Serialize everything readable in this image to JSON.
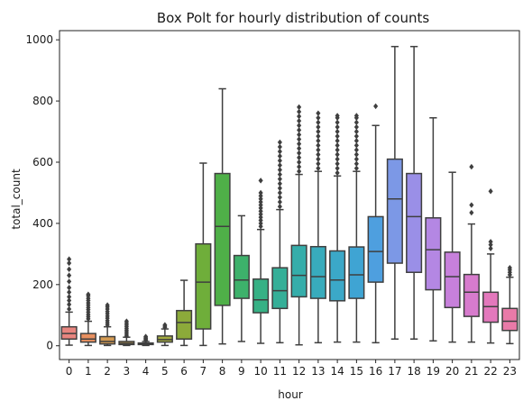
{
  "chart_data": {
    "type": "box",
    "title": "Box Polt for hourly distribution of counts",
    "xlabel": "hour",
    "ylabel": "total_count",
    "ylim": [
      -45,
      1030
    ],
    "yticks": [
      0,
      200,
      400,
      600,
      800,
      1000
    ],
    "grid": false,
    "legend": "none",
    "categories": [
      "0",
      "1",
      "2",
      "3",
      "4",
      "5",
      "6",
      "7",
      "8",
      "9",
      "10",
      "11",
      "12",
      "13",
      "14",
      "15",
      "16",
      "17",
      "18",
      "19",
      "20",
      "21",
      "22",
      "23"
    ],
    "boxes": [
      {
        "hour": "0",
        "color": "#e8857f",
        "whislo": 2,
        "q1": 22,
        "med": 40,
        "q3": 62,
        "whishi": 110,
        "fliers": [
          120,
          135,
          148,
          160,
          175,
          190,
          210,
          230,
          250,
          270,
          283
        ]
      },
      {
        "hour": "1",
        "color": "#e89060",
        "whislo": 1,
        "q1": 12,
        "med": 22,
        "q3": 40,
        "whishi": 80,
        "fliers": [
          88,
          95,
          102,
          110,
          118,
          125,
          133,
          140,
          148,
          155,
          163,
          168
        ]
      },
      {
        "hour": "2",
        "color": "#d49a52",
        "whislo": 1,
        "q1": 6,
        "med": 14,
        "q3": 30,
        "whishi": 62,
        "fliers": [
          68,
          75,
          82,
          90,
          97,
          105,
          112,
          120,
          127,
          133
        ]
      },
      {
        "hour": "3",
        "color": "#c9a24a",
        "whislo": 1,
        "q1": 4,
        "med": 8,
        "q3": 14,
        "whishi": 28,
        "fliers": [
          32,
          38,
          44,
          50,
          56,
          62,
          68,
          74,
          80
        ]
      },
      {
        "hour": "4",
        "color": "#b8a843",
        "whislo": 1,
        "q1": 4,
        "med": 6,
        "q3": 9,
        "whishi": 14,
        "fliers": [
          17,
          20,
          23,
          26,
          30
        ]
      },
      {
        "hour": "5",
        "color": "#a3ab3f",
        "whislo": 1,
        "q1": 12,
        "med": 20,
        "q3": 32,
        "whishi": 55,
        "fliers": [
          60,
          64,
          68
        ]
      },
      {
        "hour": "6",
        "color": "#8caa3a",
        "whislo": 1,
        "q1": 22,
        "med": 76,
        "q3": 115,
        "whishi": 214,
        "fliers": []
      },
      {
        "hour": "7",
        "color": "#6fae3a",
        "whislo": 1,
        "q1": 55,
        "med": 208,
        "q3": 333,
        "whishi": 597,
        "fliers": []
      },
      {
        "hour": "8",
        "color": "#4fb048",
        "whislo": 6,
        "q1": 132,
        "med": 390,
        "q3": 563,
        "whishi": 840,
        "fliers": []
      },
      {
        "hour": "9",
        "color": "#3db16b",
        "whislo": 14,
        "q1": 155,
        "med": 215,
        "q3": 295,
        "whishi": 425,
        "fliers": []
      },
      {
        "hour": "10",
        "color": "#36b185",
        "whislo": 8,
        "q1": 108,
        "med": 150,
        "q3": 218,
        "whishi": 380,
        "fliers": [
          390,
          400,
          410,
          420,
          430,
          440,
          450,
          460,
          470,
          480,
          490,
          500,
          540
        ]
      },
      {
        "hour": "11",
        "color": "#35af98",
        "whislo": 10,
        "q1": 122,
        "med": 180,
        "q3": 255,
        "whishi": 445,
        "fliers": [
          455,
          470,
          485,
          500,
          515,
          530,
          545,
          560,
          575,
          590,
          605,
          620,
          635,
          650,
          665
        ]
      },
      {
        "hour": "12",
        "color": "#35adaa",
        "whislo": 3,
        "q1": 160,
        "med": 230,
        "q3": 328,
        "whishi": 560,
        "fliers": [
          570,
          585,
          600,
          615,
          630,
          645,
          660,
          675,
          690,
          705,
          720,
          735,
          750,
          765,
          780
        ]
      },
      {
        "hour": "13",
        "color": "#38abbc",
        "whislo": 10,
        "q1": 155,
        "med": 226,
        "q3": 324,
        "whishi": 570,
        "fliers": [
          580,
          595,
          610,
          625,
          640,
          655,
          670,
          685,
          700,
          715,
          730,
          745,
          760
        ]
      },
      {
        "hour": "14",
        "color": "#3ba8c8",
        "whislo": 12,
        "q1": 147,
        "med": 215,
        "q3": 310,
        "whishi": 555,
        "fliers": [
          565,
          580,
          595,
          610,
          625,
          640,
          655,
          670,
          685,
          700,
          715,
          730,
          745,
          752
        ]
      },
      {
        "hour": "15",
        "color": "#3fa4d3",
        "whislo": 12,
        "q1": 155,
        "med": 232,
        "q3": 323,
        "whishi": 570,
        "fliers": [
          580,
          595,
          610,
          625,
          640,
          655,
          670,
          685,
          700,
          715,
          730,
          745,
          752
        ]
      },
      {
        "hour": "16",
        "color": "#4e9fdf",
        "whislo": 10,
        "q1": 208,
        "med": 308,
        "q3": 422,
        "whishi": 720,
        "fliers": [
          783
        ]
      },
      {
        "hour": "17",
        "color": "#7c98e6",
        "whislo": 22,
        "q1": 270,
        "med": 480,
        "q3": 610,
        "whishi": 978,
        "fliers": []
      },
      {
        "hour": "18",
        "color": "#9a8fe7",
        "whislo": 22,
        "q1": 240,
        "med": 422,
        "q3": 563,
        "whishi": 978,
        "fliers": []
      },
      {
        "hour": "19",
        "color": "#b487e3",
        "whislo": 16,
        "q1": 183,
        "med": 314,
        "q3": 418,
        "whishi": 745,
        "fliers": []
      },
      {
        "hour": "20",
        "color": "#c780db",
        "whislo": 12,
        "q1": 125,
        "med": 226,
        "q3": 306,
        "whishi": 567,
        "fliers": []
      },
      {
        "hour": "21",
        "color": "#d77bcd",
        "whislo": 12,
        "q1": 96,
        "med": 175,
        "q3": 233,
        "whishi": 398,
        "fliers": [
          435,
          460,
          585
        ]
      },
      {
        "hour": "22",
        "color": "#e378bc",
        "whislo": 9,
        "q1": 77,
        "med": 128,
        "q3": 175,
        "whishi": 300,
        "fliers": [
          318,
          330,
          340,
          505
        ]
      },
      {
        "hour": "23",
        "color": "#e97aa8",
        "whislo": 7,
        "q1": 50,
        "med": 80,
        "q3": 122,
        "whishi": 224,
        "fliers": [
          232,
          240,
          248,
          255
        ]
      }
    ]
  }
}
